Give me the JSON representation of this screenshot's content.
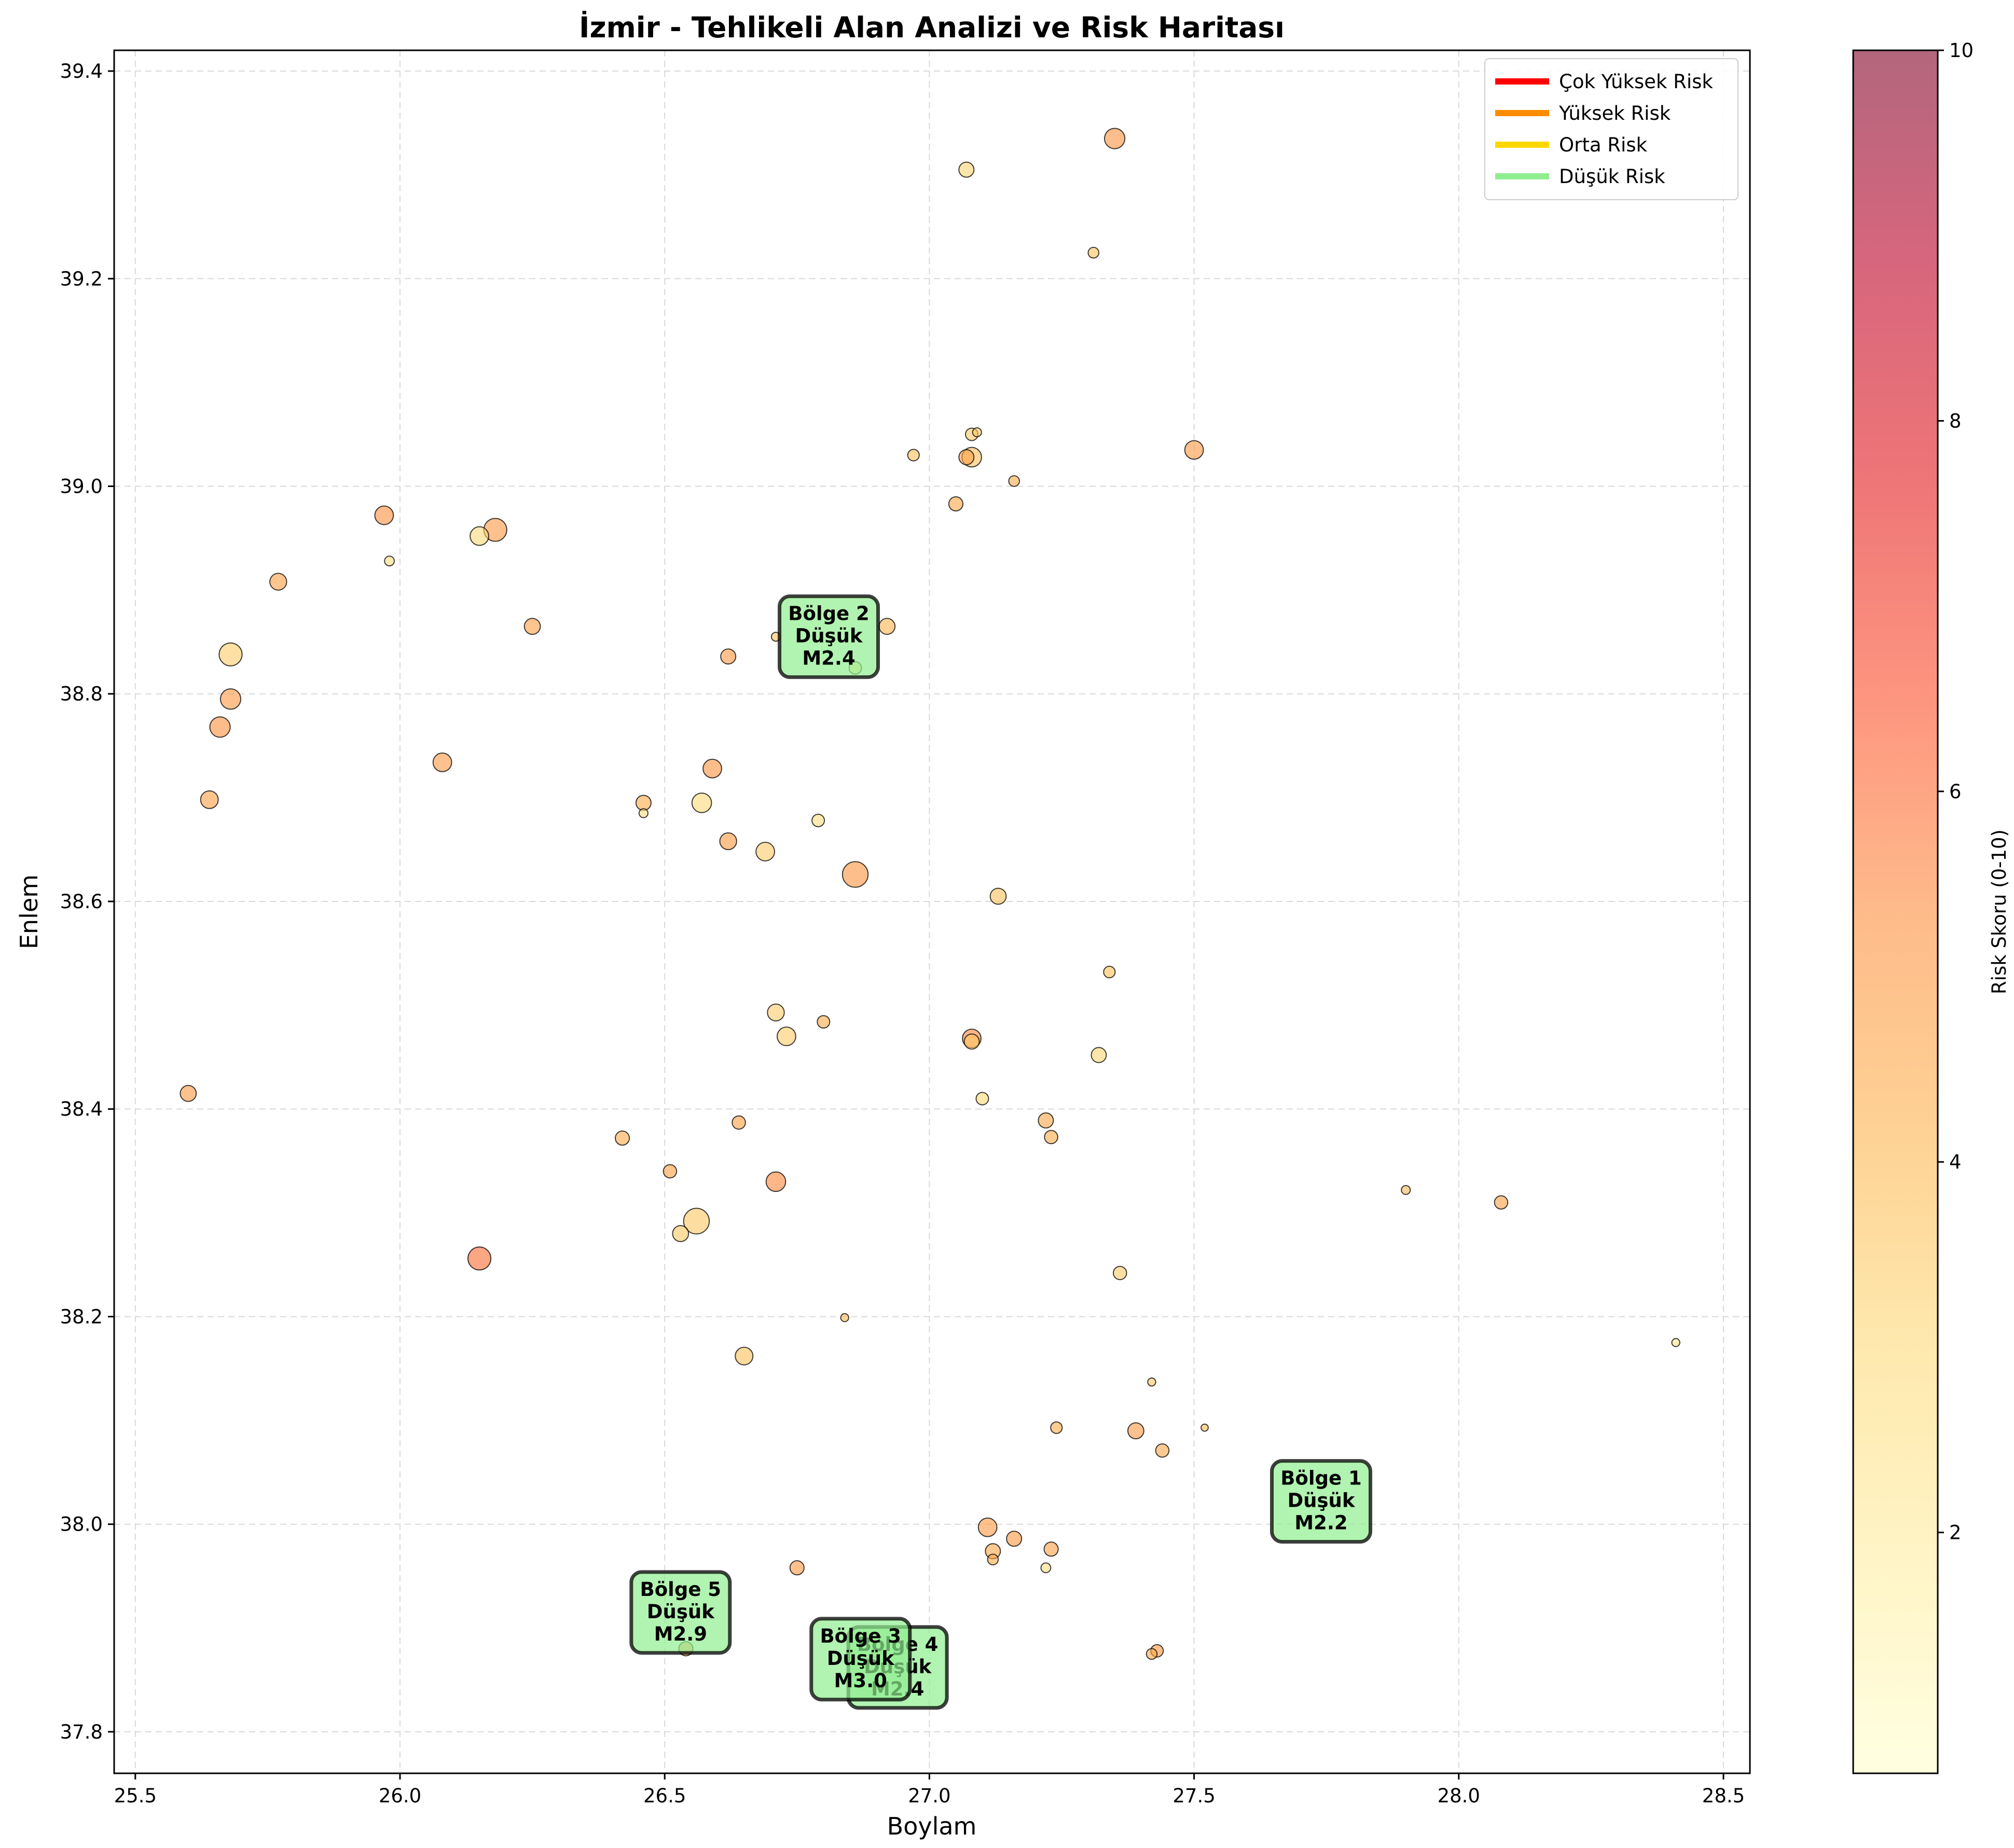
{
  "chart_data": {
    "type": "scatter",
    "title": "İzmir - Tehlikeli Alan Analizi ve Risk Haritası",
    "xlabel": "Boylam",
    "ylabel": "Enlem",
    "xlim": [
      25.46,
      28.55
    ],
    "ylim": [
      37.76,
      39.42
    ],
    "xticks": [
      "25.5",
      "26.0",
      "26.5",
      "27.0",
      "27.5",
      "28.0",
      "28.5"
    ],
    "yticks": [
      "37.8",
      "38.0",
      "38.2",
      "38.4",
      "38.6",
      "38.8",
      "39.0",
      "39.2",
      "39.4"
    ],
    "grid": true,
    "colorbar": {
      "label": "Risk Skoru (0-10)",
      "range": [
        0.7,
        10
      ],
      "ticks": [
        "2",
        "4",
        "6",
        "8",
        "10"
      ],
      "colormap": "YlOrRd"
    },
    "legend": {
      "placement": "top-right",
      "entries": [
        {
          "label": "Çok Yüksek Risk",
          "color": "#ff0000"
        },
        {
          "label": "Yüksek Risk",
          "color": "#ff8c00"
        },
        {
          "label": "Orta Risk",
          "color": "#ffd700"
        },
        {
          "label": "Düşük Risk",
          "color": "#90ee90"
        }
      ]
    },
    "points": [
      {
        "lon": 27.35,
        "lat": 39.335,
        "risk": 5.2,
        "mag": 3.1
      },
      {
        "lon": 27.07,
        "lat": 39.305,
        "risk": 3.2,
        "mag": 2.5
      },
      {
        "lon": 27.31,
        "lat": 39.225,
        "risk": 3.8,
        "mag": 2.0
      },
      {
        "lon": 27.08,
        "lat": 39.05,
        "risk": 3.5,
        "mag": 2.2
      },
      {
        "lon": 27.09,
        "lat": 39.052,
        "risk": 3.6,
        "mag": 1.8
      },
      {
        "lon": 26.97,
        "lat": 39.03,
        "risk": 3.8,
        "mag": 2.1
      },
      {
        "lon": 27.08,
        "lat": 39.028,
        "risk": 3.8,
        "mag": 3.0
      },
      {
        "lon": 27.07,
        "lat": 39.028,
        "risk": 4.8,
        "mag": 2.5
      },
      {
        "lon": 27.5,
        "lat": 39.035,
        "risk": 5.0,
        "mag": 2.9
      },
      {
        "lon": 27.16,
        "lat": 39.005,
        "risk": 4.5,
        "mag": 2.0
      },
      {
        "lon": 27.05,
        "lat": 38.983,
        "risk": 4.6,
        "mag": 2.4
      },
      {
        "lon": 25.97,
        "lat": 38.972,
        "risk": 5.3,
        "mag": 2.9
      },
      {
        "lon": 26.18,
        "lat": 38.958,
        "risk": 5.0,
        "mag": 3.4
      },
      {
        "lon": 26.15,
        "lat": 38.952,
        "risk": 3.0,
        "mag": 2.9
      },
      {
        "lon": 25.98,
        "lat": 38.928,
        "risk": 2.8,
        "mag": 1.9
      },
      {
        "lon": 25.77,
        "lat": 38.908,
        "risk": 4.8,
        "mag": 2.7
      },
      {
        "lon": 26.25,
        "lat": 38.865,
        "risk": 4.8,
        "mag": 2.6
      },
      {
        "lon": 26.92,
        "lat": 38.865,
        "risk": 4.2,
        "mag": 2.6
      },
      {
        "lon": 26.71,
        "lat": 38.855,
        "risk": 3.8,
        "mag": 1.8
      },
      {
        "lon": 25.68,
        "lat": 38.838,
        "risk": 3.4,
        "mag": 3.4
      },
      {
        "lon": 26.62,
        "lat": 38.836,
        "risk": 5.0,
        "mag": 2.5
      },
      {
        "lon": 26.86,
        "lat": 38.825,
        "risk": 2.5,
        "mag": 2.2
      },
      {
        "lon": 25.68,
        "lat": 38.795,
        "risk": 5.0,
        "mag": 3.1
      },
      {
        "lon": 25.66,
        "lat": 38.768,
        "risk": 5.3,
        "mag": 3.1
      },
      {
        "lon": 26.08,
        "lat": 38.734,
        "risk": 5.0,
        "mag": 2.9
      },
      {
        "lon": 26.59,
        "lat": 38.728,
        "risk": 5.2,
        "mag": 2.9
      },
      {
        "lon": 25.64,
        "lat": 38.698,
        "risk": 4.8,
        "mag": 2.8
      },
      {
        "lon": 26.46,
        "lat": 38.695,
        "risk": 4.5,
        "mag": 2.5
      },
      {
        "lon": 26.57,
        "lat": 38.695,
        "risk": 3.0,
        "mag": 3.0
      },
      {
        "lon": 26.46,
        "lat": 38.685,
        "risk": 2.8,
        "mag": 1.8
      },
      {
        "lon": 26.79,
        "lat": 38.678,
        "risk": 2.8,
        "mag": 2.2
      },
      {
        "lon": 26.62,
        "lat": 38.658,
        "risk": 5.0,
        "mag": 2.7
      },
      {
        "lon": 26.69,
        "lat": 38.648,
        "risk": 3.5,
        "mag": 2.9
      },
      {
        "lon": 26.86,
        "lat": 38.626,
        "risk": 5.2,
        "mag": 3.7
      },
      {
        "lon": 27.13,
        "lat": 38.605,
        "risk": 3.8,
        "mag": 2.6
      },
      {
        "lon": 27.34,
        "lat": 38.532,
        "risk": 3.8,
        "mag": 2.1
      },
      {
        "lon": 26.71,
        "lat": 38.493,
        "risk": 3.4,
        "mag": 2.7
      },
      {
        "lon": 26.8,
        "lat": 38.484,
        "risk": 4.5,
        "mag": 2.2
      },
      {
        "lon": 26.73,
        "lat": 38.47,
        "risk": 3.4,
        "mag": 2.9
      },
      {
        "lon": 27.08,
        "lat": 38.468,
        "risk": 5.5,
        "mag": 2.9
      },
      {
        "lon": 27.08,
        "lat": 38.465,
        "risk": 3.6,
        "mag": 2.5
      },
      {
        "lon": 27.32,
        "lat": 38.452,
        "risk": 3.2,
        "mag": 2.5
      },
      {
        "lon": 25.6,
        "lat": 38.415,
        "risk": 5.0,
        "mag": 2.6
      },
      {
        "lon": 27.1,
        "lat": 38.41,
        "risk": 3.0,
        "mag": 2.2
      },
      {
        "lon": 27.22,
        "lat": 38.389,
        "risk": 4.6,
        "mag": 2.5
      },
      {
        "lon": 26.64,
        "lat": 38.387,
        "risk": 4.8,
        "mag": 2.3
      },
      {
        "lon": 27.23,
        "lat": 38.373,
        "risk": 4.5,
        "mag": 2.3
      },
      {
        "lon": 26.42,
        "lat": 38.372,
        "risk": 4.5,
        "mag": 2.4
      },
      {
        "lon": 26.51,
        "lat": 38.34,
        "risk": 4.8,
        "mag": 2.3
      },
      {
        "lon": 26.71,
        "lat": 38.33,
        "risk": 5.5,
        "mag": 3.0
      },
      {
        "lon": 27.9,
        "lat": 38.322,
        "risk": 4.0,
        "mag": 1.8
      },
      {
        "lon": 28.08,
        "lat": 38.31,
        "risk": 4.8,
        "mag": 2.3
      },
      {
        "lon": 26.56,
        "lat": 38.292,
        "risk": 3.6,
        "mag": 3.7
      },
      {
        "lon": 26.53,
        "lat": 38.28,
        "risk": 3.6,
        "mag": 2.6
      },
      {
        "lon": 26.15,
        "lat": 38.256,
        "risk": 6.0,
        "mag": 3.4
      },
      {
        "lon": 27.36,
        "lat": 38.242,
        "risk": 3.5,
        "mag": 2.3
      },
      {
        "lon": 26.84,
        "lat": 38.199,
        "risk": 4.0,
        "mag": 1.7
      },
      {
        "lon": 28.41,
        "lat": 38.175,
        "risk": 2.5,
        "mag": 1.7
      },
      {
        "lon": 26.65,
        "lat": 38.162,
        "risk": 3.8,
        "mag": 2.8
      },
      {
        "lon": 27.42,
        "lat": 38.137,
        "risk": 3.6,
        "mag": 1.7
      },
      {
        "lon": 27.24,
        "lat": 38.093,
        "risk": 4.5,
        "mag": 2.1
      },
      {
        "lon": 27.52,
        "lat": 38.093,
        "risk": 4.0,
        "mag": 1.6
      },
      {
        "lon": 27.39,
        "lat": 38.09,
        "risk": 5.0,
        "mag": 2.6
      },
      {
        "lon": 27.44,
        "lat": 38.071,
        "risk": 4.6,
        "mag": 2.3
      },
      {
        "lon": 27.11,
        "lat": 37.997,
        "risk": 5.0,
        "mag": 2.9
      },
      {
        "lon": 27.16,
        "lat": 37.986,
        "risk": 5.0,
        "mag": 2.5
      },
      {
        "lon": 27.12,
        "lat": 37.974,
        "risk": 4.6,
        "mag": 2.5
      },
      {
        "lon": 27.23,
        "lat": 37.976,
        "risk": 4.8,
        "mag": 2.4
      },
      {
        "lon": 27.12,
        "lat": 37.966,
        "risk": 4.5,
        "mag": 2.0
      },
      {
        "lon": 26.75,
        "lat": 37.958,
        "risk": 5.0,
        "mag": 2.4
      },
      {
        "lon": 27.22,
        "lat": 37.958,
        "risk": 2.8,
        "mag": 1.9
      },
      {
        "lon": 26.54,
        "lat": 37.88,
        "risk": 5.0,
        "mag": 2.4
      },
      {
        "lon": 27.43,
        "lat": 37.878,
        "risk": 5.0,
        "mag": 2.2
      },
      {
        "lon": 27.42,
        "lat": 37.875,
        "risk": 4.5,
        "mag": 2.0
      },
      {
        "lon": 26.9,
        "lat": 37.876,
        "risk": 4.0,
        "mag": 1.8
      }
    ],
    "zones": [
      {
        "line1": "Bölge 1",
        "line2": "Düşük",
        "line3": "M2.2",
        "lon": 27.74,
        "lat": 38.022
      },
      {
        "line1": "Bölge 2",
        "line2": "Düşük",
        "line3": "M2.4",
        "lon": 26.81,
        "lat": 38.855
      },
      {
        "line1": "Bölge 4",
        "line2": "Düşük",
        "line3": "M2.4",
        "lon": 26.94,
        "lat": 37.862
      },
      {
        "line1": "Bölge 3",
        "line2": "Düşük",
        "line3": "M3.0",
        "lon": 26.87,
        "lat": 37.87
      },
      {
        "line1": "Bölge 5",
        "line2": "Düşük",
        "line3": "M2.9",
        "lon": 26.53,
        "lat": 37.915
      }
    ]
  }
}
